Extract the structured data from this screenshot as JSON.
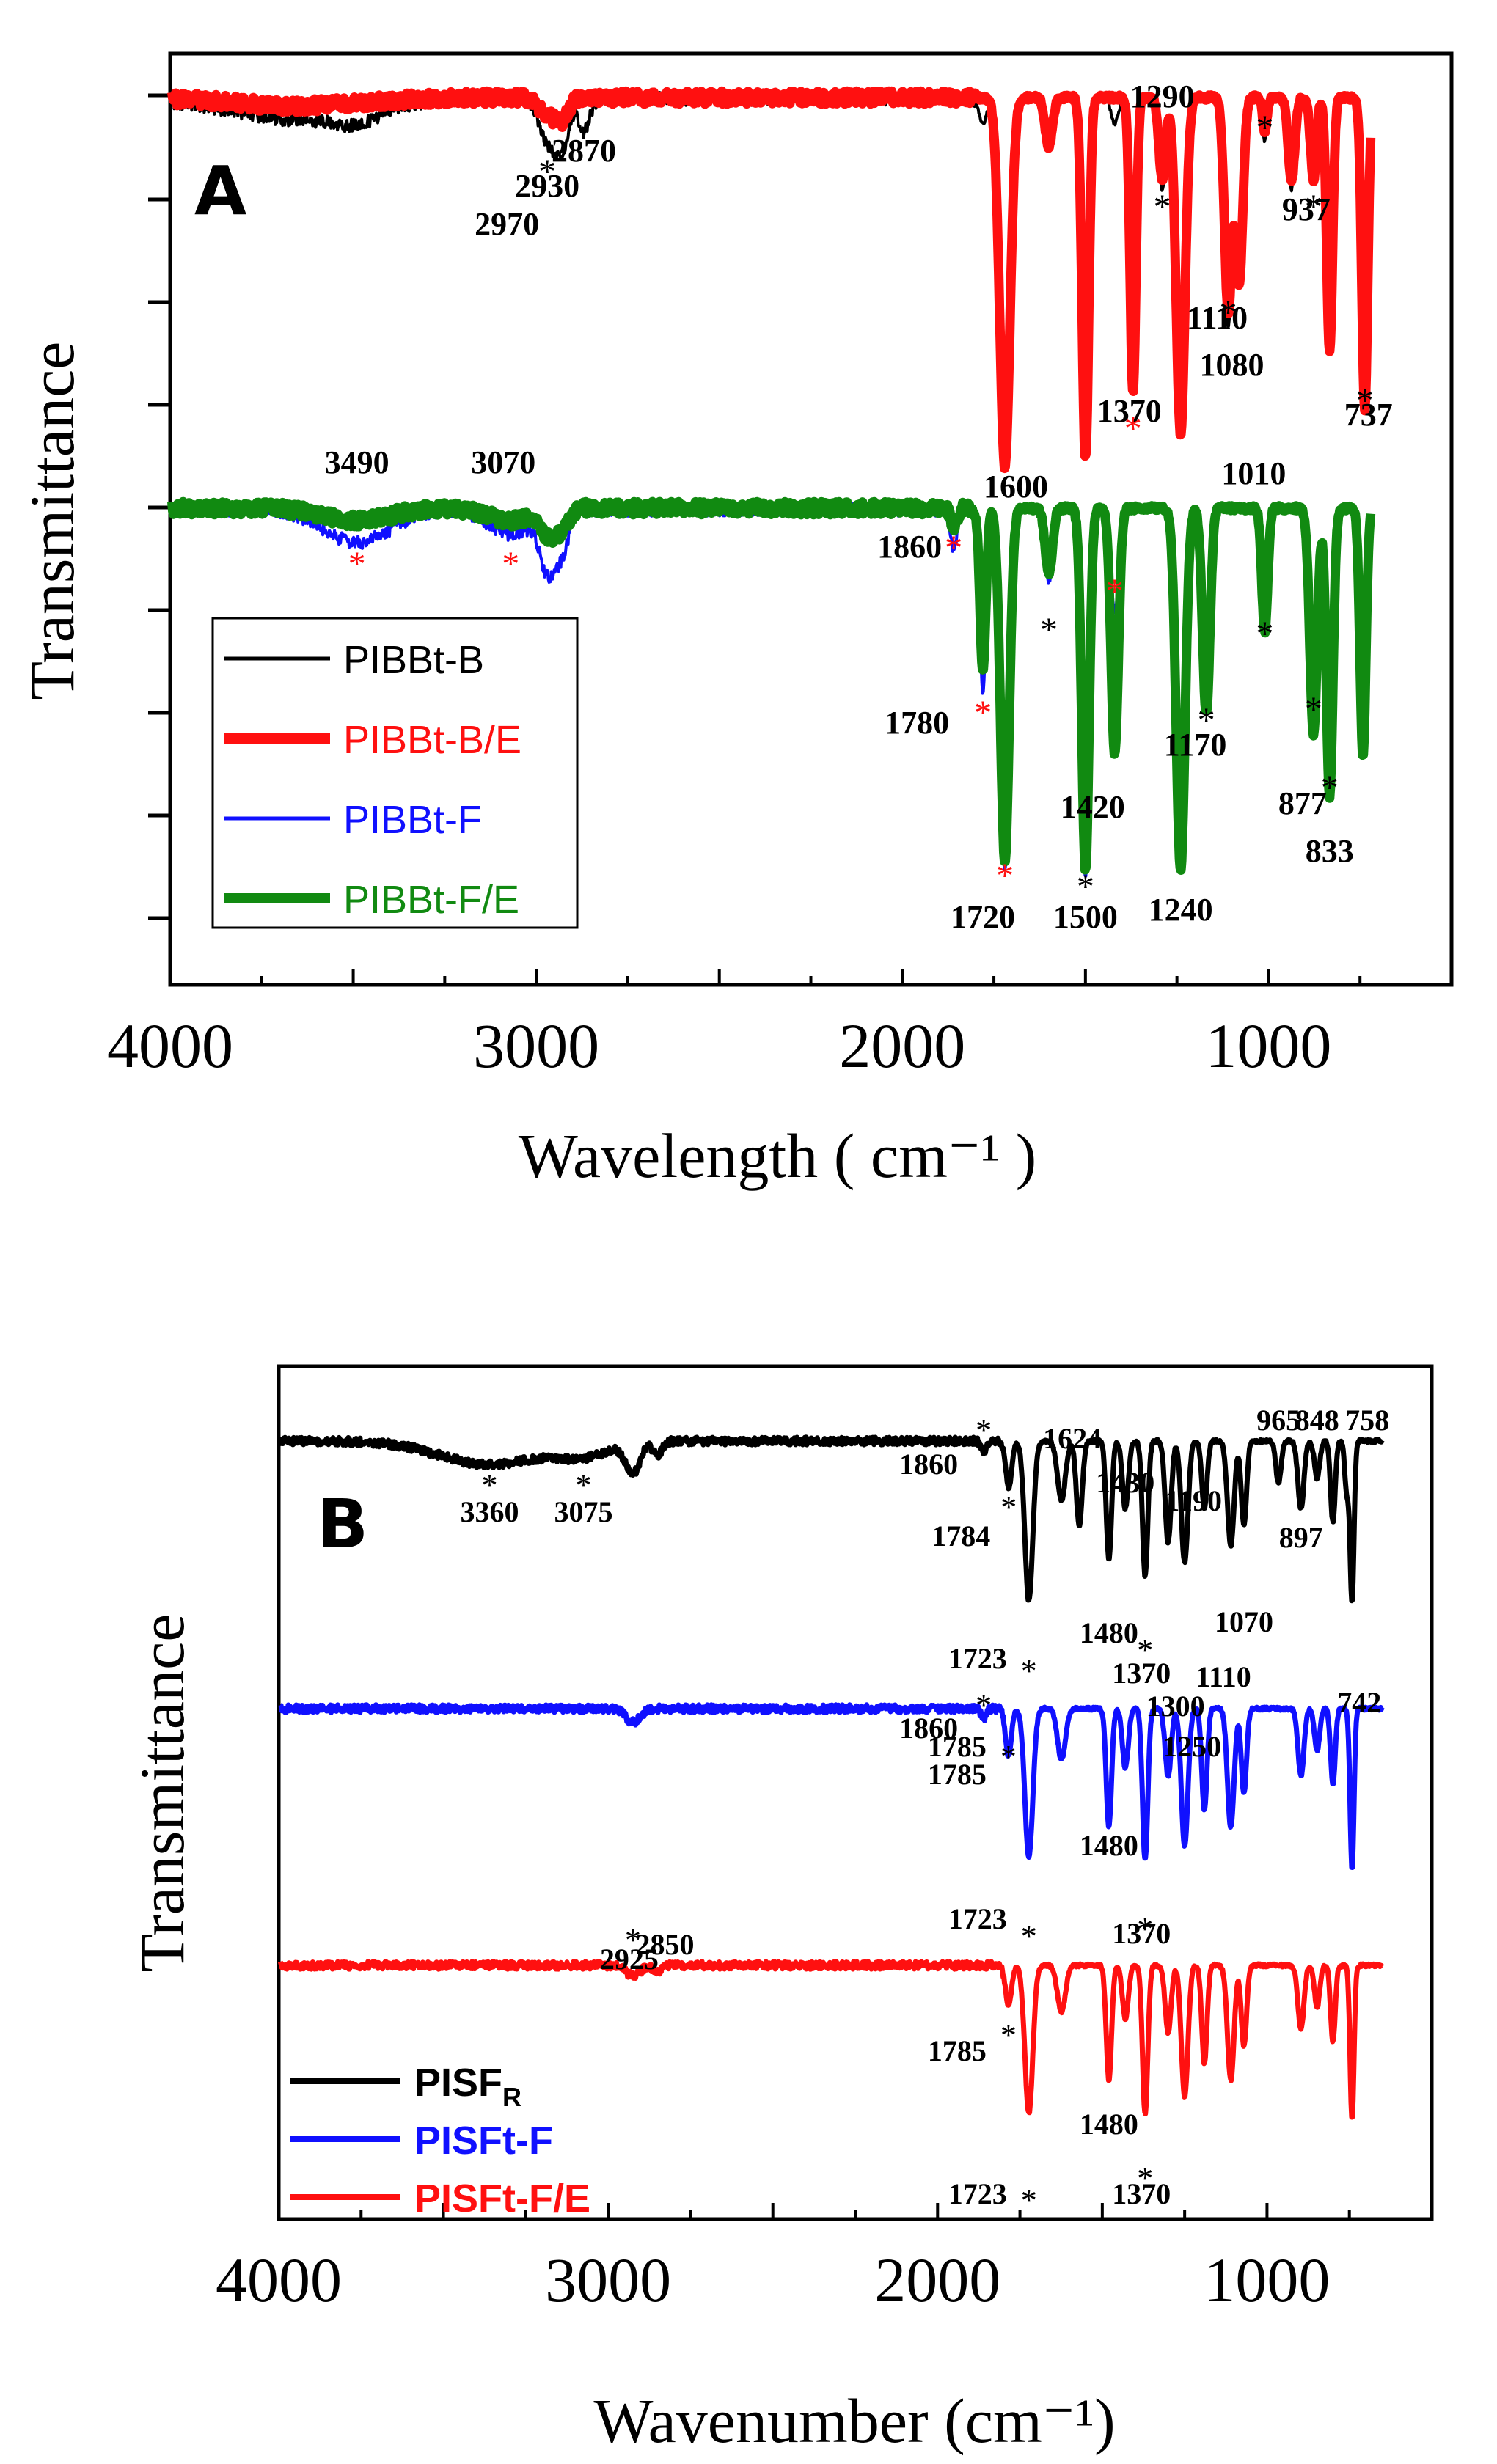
{
  "chart_data": [
    {
      "panel": "A",
      "type": "line",
      "xlabel": "Wavelength ( cm⁻¹ )",
      "ylabel": "Transmittance",
      "xlim": [
        4000,
        500
      ],
      "xticks": [
        4000,
        3000,
        2000,
        1000
      ],
      "xtick_labels": [
        "4000",
        "3000",
        "2000",
        "1000"
      ],
      "legend": [
        {
          "name": "PIBBt-B",
          "color": "#000000",
          "width": "thin"
        },
        {
          "name": "PIBBt-B/E",
          "color": "#ff1010",
          "width": "thick"
        },
        {
          "name": "PIBBt-F",
          "color": "#1010ff",
          "width": "thin"
        },
        {
          "name": "PIBBt-F/E",
          "color": "#118a11",
          "width": "thick"
        }
      ],
      "series": [
        {
          "name": "PIBBt-B",
          "color": "#000000",
          "group": 1,
          "baseline": 0.25,
          "bands": [
            [
              3650,
              5,
              180
            ],
            [
              3490,
              3,
              60
            ],
            [
              2970,
              10,
              22
            ],
            [
              2930,
              12,
              18
            ],
            [
              2870,
              8,
              15
            ],
            [
              1780,
              6,
              10
            ],
            [
              1720,
              88,
              14
            ],
            [
              1600,
              12,
              10
            ],
            [
              1500,
              86,
              9
            ],
            [
              1420,
              6,
              10
            ],
            [
              1370,
              70,
              8
            ],
            [
              1290,
              22,
              9
            ],
            [
              1240,
              80,
              12
            ],
            [
              1110,
              55,
              10
            ],
            [
              1080,
              45,
              10
            ],
            [
              1010,
              10,
              6
            ],
            [
              937,
              22,
              9
            ],
            [
              877,
              20,
              8
            ],
            [
              833,
              60,
              8
            ],
            [
              737,
              75,
              8
            ]
          ]
        },
        {
          "name": "PIBBt-B/E",
          "color": "#ff1010",
          "group": 1,
          "baseline": 0.0,
          "bands": [
            [
              3650,
              2,
              180
            ],
            [
              2970,
              4,
              22
            ],
            [
              2930,
              5,
              18
            ],
            [
              1720,
              90,
              14
            ],
            [
              1600,
              12,
              10
            ],
            [
              1500,
              88,
              9
            ],
            [
              1370,
              72,
              8
            ],
            [
              1290,
              20,
              9
            ],
            [
              1240,
              82,
              12
            ],
            [
              1110,
              52,
              10
            ],
            [
              1080,
              45,
              10
            ],
            [
              1010,
              8,
              6
            ],
            [
              937,
              20,
              9
            ],
            [
              877,
              20,
              8
            ],
            [
              833,
              62,
              8
            ],
            [
              737,
              76,
              8
            ]
          ]
        },
        {
          "name": "PIBBt-F",
          "color": "#1010ff",
          "group": 2,
          "baseline": 0.25,
          "bands": [
            [
              3490,
              8,
              90
            ],
            [
              3070,
              6,
              60
            ],
            [
              2970,
              14,
              20
            ],
            [
              2930,
              10,
              18
            ],
            [
              1860,
              10,
              9
            ],
            [
              1780,
              45,
              8
            ],
            [
              1720,
              88,
              12
            ],
            [
              1600,
              18,
              10
            ],
            [
              1500,
              90,
              10
            ],
            [
              1420,
              25,
              10
            ],
            [
              1240,
              88,
              12
            ],
            [
              1170,
              50,
              10
            ],
            [
              1010,
              30,
              8
            ],
            [
              877,
              55,
              10
            ],
            [
              833,
              70,
              9
            ],
            [
              742,
              60,
              8
            ]
          ]
        },
        {
          "name": "PIBBt-F/E",
          "color": "#118a11",
          "group": 2,
          "baseline": 0.0,
          "bands": [
            [
              3490,
              3,
              90
            ],
            [
              3070,
              3,
              60
            ],
            [
              2970,
              6,
              20
            ],
            [
              2930,
              5,
              18
            ],
            [
              1860,
              4,
              9
            ],
            [
              1780,
              40,
              8
            ],
            [
              1720,
              86,
              12
            ],
            [
              1600,
              16,
              10
            ],
            [
              1500,
              88,
              10
            ],
            [
              1420,
              60,
              10
            ],
            [
              1240,
              88,
              12
            ],
            [
              1170,
              50,
              10
            ],
            [
              1010,
              30,
              8
            ],
            [
              877,
              55,
              10
            ],
            [
              833,
              70,
              9
            ],
            [
              742,
              60,
              8
            ]
          ]
        }
      ],
      "annotations": [
        {
          "text": "2870",
          "x": 2870
        },
        {
          "text": "2930",
          "x": 2930
        },
        {
          "text": "2970",
          "x": 2970
        },
        {
          "text": "1290",
          "x": 1290
        },
        {
          "text": "937",
          "x": 937
        },
        {
          "text": "1110",
          "x": 1110
        },
        {
          "text": "1080",
          "x": 1080
        },
        {
          "text": "1370",
          "x": 1370
        },
        {
          "text": "737",
          "x": 737
        },
        {
          "text": "3490",
          "x": 3490
        },
        {
          "text": "3070",
          "x": 3070
        },
        {
          "text": "1600",
          "x": 1600
        },
        {
          "text": "1010",
          "x": 1010
        },
        {
          "text": "1860",
          "x": 1860
        },
        {
          "text": "1780",
          "x": 1780
        },
        {
          "text": "1420",
          "x": 1420
        },
        {
          "text": "1170",
          "x": 1170
        },
        {
          "text": "877",
          "x": 877
        },
        {
          "text": "833",
          "x": 833
        },
        {
          "text": "1720",
          "x": 1720
        },
        {
          "text": "1500",
          "x": 1500
        },
        {
          "text": "1240",
          "x": 1240
        }
      ]
    },
    {
      "panel": "B",
      "type": "line",
      "xlabel": "Wavenumber (cm⁻¹)",
      "ylabel": "Transmittance",
      "xlim": [
        4000,
        500
      ],
      "xticks": [
        4000,
        3000,
        2000,
        1000
      ],
      "xtick_labels": [
        "4000",
        "3000",
        "2000",
        "1000"
      ],
      "legend": [
        {
          "name": "PISF",
          "sub": "R",
          "color": "#000000"
        },
        {
          "name": "PISFt-F",
          "sub": "",
          "color": "#1010ff"
        },
        {
          "name": "PISFt-F/E",
          "sub": "",
          "color": "#ff1010"
        }
      ],
      "series": [
        {
          "name": "PISF_R",
          "color": "#000000",
          "offset": 0,
          "bands": [
            [
              3360,
              14,
              150
            ],
            [
              3075,
              8,
              80
            ],
            [
              2925,
              18,
              22
            ],
            [
              2850,
              8,
              14
            ],
            [
              1860,
              6,
              8
            ],
            [
              1784,
              28,
              9
            ],
            [
              1723,
              95,
              12
            ],
            [
              1624,
              35,
              12
            ],
            [
              1570,
              50,
              9
            ],
            [
              1480,
              70,
              8
            ],
            [
              1430,
              40,
              9
            ],
            [
              1370,
              80,
              8
            ],
            [
              1300,
              60,
              9
            ],
            [
              1250,
              72,
              10
            ],
            [
              1190,
              40,
              8
            ],
            [
              1110,
              62,
              10
            ],
            [
              1070,
              50,
              8
            ],
            [
              965,
              25,
              8
            ],
            [
              897,
              40,
              9
            ],
            [
              848,
              22,
              8
            ],
            [
              800,
              48,
              7
            ],
            [
              758,
              30,
              6
            ],
            [
              742,
              95,
              6
            ]
          ]
        },
        {
          "name": "PISFt-F",
          "color": "#1010ff",
          "offset": 1,
          "bands": [
            [
              2925,
              8,
              22
            ],
            [
              1860,
              6,
              8
            ],
            [
              1785,
              28,
              9
            ],
            [
              1723,
              88,
              12
            ],
            [
              1624,
              30,
              12
            ],
            [
              1480,
              70,
              8
            ],
            [
              1430,
              35,
              9
            ],
            [
              1370,
              90,
              8
            ],
            [
              1300,
              40,
              9
            ],
            [
              1250,
              82,
              10
            ],
            [
              1190,
              60,
              8
            ],
            [
              1110,
              70,
              10
            ],
            [
              1070,
              50,
              8
            ],
            [
              897,
              40,
              9
            ],
            [
              848,
              25,
              8
            ],
            [
              800,
              45,
              7
            ],
            [
              742,
              95,
              6
            ]
          ]
        },
        {
          "name": "PISFt-F/E",
          "color": "#ff1010",
          "offset": 2,
          "bands": [
            [
              2925,
              6,
              22
            ],
            [
              2850,
              4,
              14
            ],
            [
              1785,
              24,
              9
            ],
            [
              1723,
              88,
              12
            ],
            [
              1624,
              28,
              12
            ],
            [
              1480,
              68,
              8
            ],
            [
              1430,
              32,
              9
            ],
            [
              1370,
              88,
              8
            ],
            [
              1300,
              40,
              9
            ],
            [
              1250,
              78,
              10
            ],
            [
              1190,
              58,
              8
            ],
            [
              1110,
              68,
              10
            ],
            [
              1070,
              48,
              8
            ],
            [
              897,
              38,
              9
            ],
            [
              848,
              25,
              8
            ],
            [
              800,
              45,
              7
            ],
            [
              742,
              92,
              6
            ]
          ]
        }
      ],
      "annotations": [
        {
          "text": "3360",
          "x": 3360
        },
        {
          "text": "3075",
          "x": 3075
        },
        {
          "text": "1860",
          "x": 1860
        },
        {
          "text": "1624",
          "x": 1624
        },
        {
          "text": "1784",
          "x": 1784
        },
        {
          "text": "1430",
          "x": 1430
        },
        {
          "text": "1190",
          "x": 1190
        },
        {
          "text": "965",
          "x": 965
        },
        {
          "text": "848",
          "x": 848
        },
        {
          "text": "758",
          "x": 758
        },
        {
          "text": "897",
          "x": 897
        },
        {
          "text": "1723",
          "x": 1723
        },
        {
          "text": "1480",
          "x": 1480
        },
        {
          "text": "1370",
          "x": 1370
        },
        {
          "text": "1070",
          "x": 1070
        },
        {
          "text": "1110",
          "x": 1110
        },
        {
          "text": "742",
          "x": 742
        },
        {
          "text": "1300",
          "x": 1300
        },
        {
          "text": "1250",
          "x": 1250
        },
        {
          "text": "1785",
          "x": 1785
        },
        {
          "text": "2925",
          "x": 2925
        },
        {
          "text": "2850",
          "x": 2850
        }
      ]
    }
  ]
}
